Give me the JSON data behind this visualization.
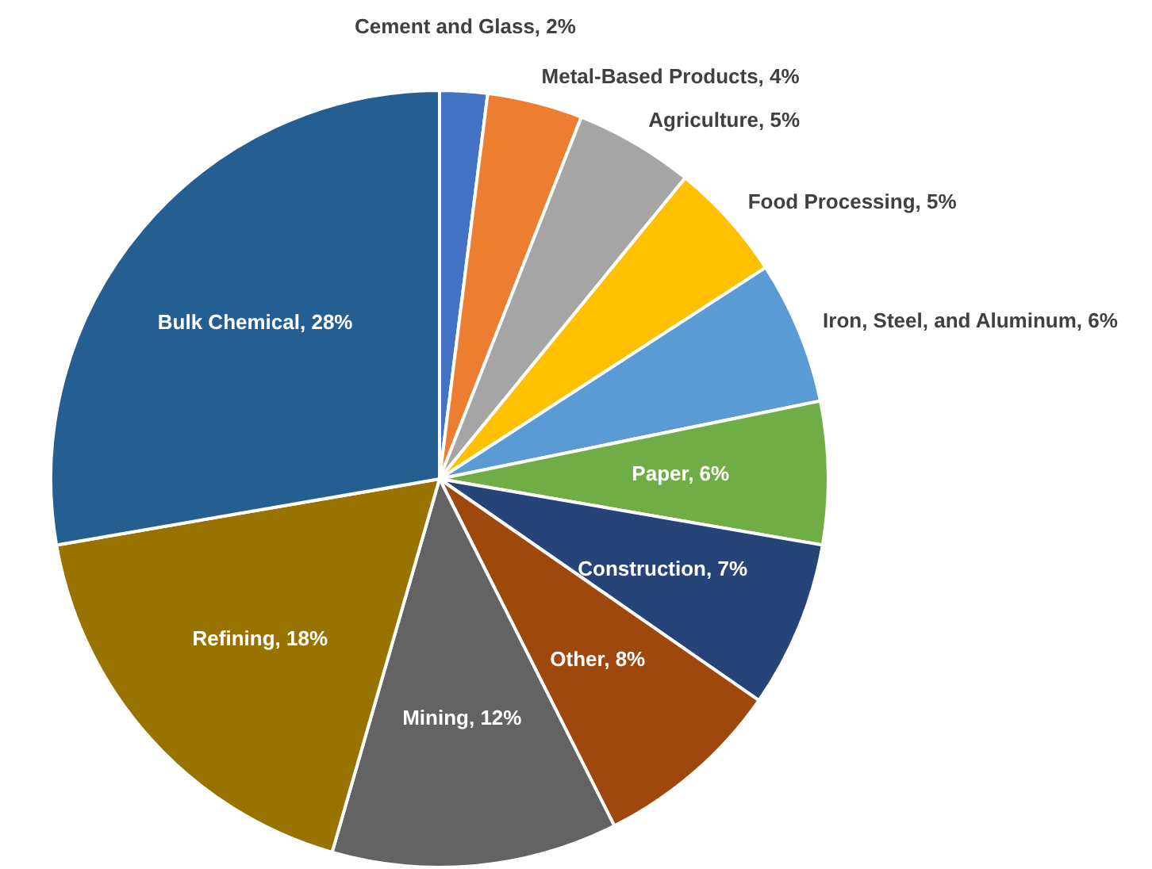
{
  "chart_data": {
    "type": "pie",
    "categories": [
      "Cement and Glass",
      "Metal-Based Products",
      "Agriculture",
      "Food Processing",
      "Iron, Steel, and Aluminum",
      "Paper",
      "Construction",
      "Other",
      "Mining",
      "Refining",
      "Bulk Chemical"
    ],
    "values": [
      2,
      4,
      5,
      5,
      6,
      6,
      7,
      8,
      12,
      18,
      28
    ],
    "colors": [
      "#4472c4",
      "#ed7d31",
      "#a5a5a5",
      "#ffc000",
      "#5b9bd5",
      "#70ad47",
      "#264478",
      "#9e480e",
      "#636363",
      "#997300",
      "#255e91"
    ],
    "value_labels": [
      "2%",
      "4%",
      "5%",
      "5%",
      "6%",
      "6%",
      "7%",
      "8%",
      "12%",
      "18%",
      "28%"
    ]
  }
}
